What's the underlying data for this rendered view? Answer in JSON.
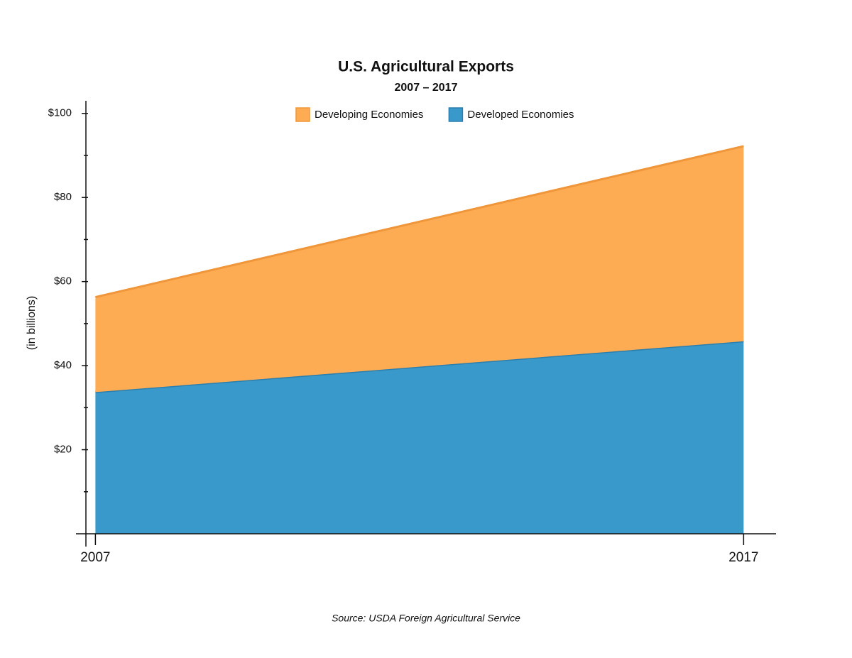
{
  "chart_data": {
    "type": "stacked-area",
    "title": "U.S. Agricultural Exports",
    "subtitle": "2007 – 2017",
    "y_label": "(in billions)",
    "source": "Source: USDA Foreign Agricultural Service",
    "x": [
      2007,
      2017
    ],
    "xlim": [
      2006.7,
      2017.5
    ],
    "xticks": [
      2007,
      2017
    ],
    "ylim": [
      0,
      103
    ],
    "yticks": [
      {
        "value": 20,
        "label": "$20"
      },
      {
        "value": 40,
        "label": "$40"
      },
      {
        "value": 60,
        "label": "$60"
      },
      {
        "value": 80,
        "label": "$80"
      },
      {
        "value": 100,
        "label": "$100"
      }
    ],
    "minor_yticks": [
      10,
      30,
      50,
      70,
      90
    ],
    "series": [
      {
        "name": "Developing Economies",
        "color": "#fdac54",
        "edge_color": "#f0963a",
        "values": [
          22.6,
          46.4
        ]
      },
      {
        "name": "Developed Economies",
        "color": "#3a99cb",
        "edge_color": "#2a7fae",
        "values": [
          33.7,
          45.8
        ]
      }
    ]
  }
}
